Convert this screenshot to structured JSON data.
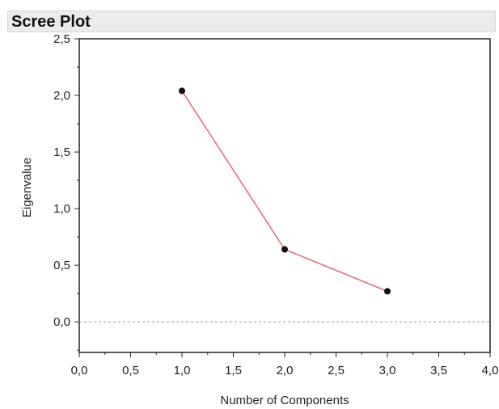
{
  "title": "Scree Plot",
  "chart_data": {
    "type": "line",
    "title": "Scree Plot",
    "xlabel": "Number of Components",
    "ylabel": "Eigenvalue",
    "x": [
      1.0,
      2.0,
      3.0
    ],
    "y": [
      2.04,
      0.64,
      0.27
    ],
    "xlim": [
      0.0,
      4.0
    ],
    "ylim": [
      -0.27,
      2.5
    ],
    "x_ticks": [
      0.0,
      0.5,
      1.0,
      1.5,
      2.0,
      2.5,
      3.0,
      3.5,
      4.0
    ],
    "x_tick_labels": [
      "0,0",
      "0,5",
      "1,0",
      "1,5",
      "2,0",
      "2,5",
      "3,0",
      "3,5",
      "4,0"
    ],
    "y_ticks": [
      0.0,
      0.5,
      1.0,
      1.5,
      2.0,
      2.5
    ],
    "y_tick_labels": [
      "0,0",
      "0,5",
      "1,0",
      "1,5",
      "2,0",
      "2,5"
    ],
    "reference_line": {
      "y": 0.0,
      "style": "dashed"
    },
    "grid": false,
    "colors": {
      "line": "#e0707a",
      "marker": "#111111",
      "reference": "#999999",
      "frame": "#222222"
    }
  }
}
